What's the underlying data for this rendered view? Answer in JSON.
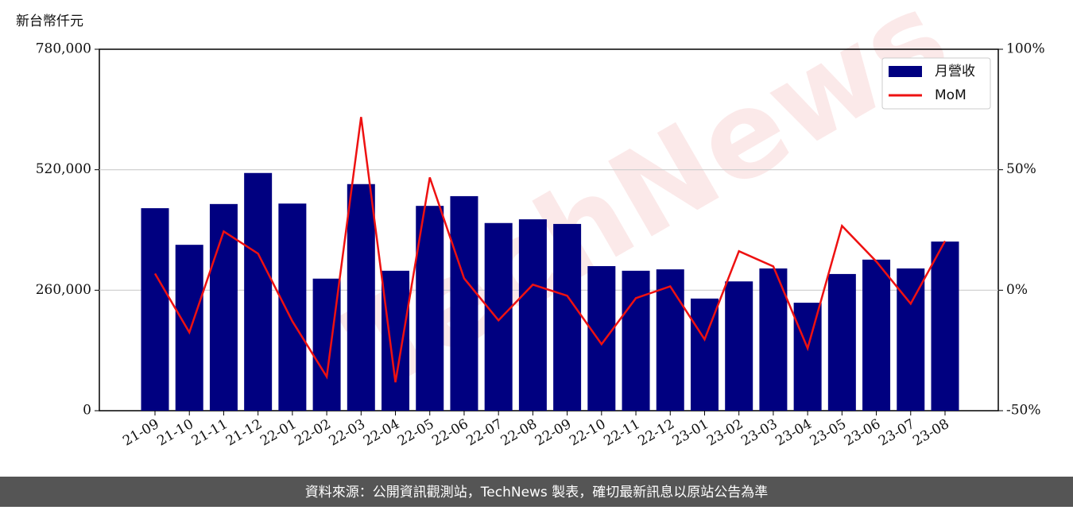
{
  "chart_data": {
    "type": "bar-line",
    "y_label": "新台幣仟元",
    "watermark": "TechNews",
    "footer": "資料來源：公開資訊觀測站，TechNews 製表，確切最新訊息以原站公告為準",
    "categories": [
      "21-09",
      "21-10",
      "21-11",
      "21-12",
      "22-01",
      "22-02",
      "22-03",
      "22-04",
      "22-05",
      "22-06",
      "22-07",
      "22-08",
      "22-09",
      "22-10",
      "22-11",
      "22-12",
      "23-01",
      "23-02",
      "23-03",
      "23-04",
      "23-05",
      "23-06",
      "23-07",
      "23-08"
    ],
    "series": [
      {
        "name": "月營收",
        "type": "bar",
        "color": "#000080",
        "values": [
          437000,
          358000,
          446000,
          513000,
          447000,
          285000,
          489000,
          302000,
          442000,
          463000,
          405000,
          413000,
          403000,
          312000,
          302000,
          305000,
          242000,
          279000,
          307000,
          233000,
          295000,
          326000,
          307000,
          365000
        ]
      },
      {
        "name": "MoM",
        "type": "line",
        "axis": "y2",
        "color": "#ee1111",
        "values": [
          6.9,
          -17.5,
          24.4,
          15.2,
          -12.9,
          -35.9,
          71.9,
          -38.2,
          46.8,
          4.9,
          -12.5,
          2.3,
          -2.3,
          -22.4,
          -3.3,
          1.6,
          -20.4,
          16.2,
          9.9,
          -24.1,
          26.7,
          11.9,
          -5.6,
          20.4
        ]
      }
    ],
    "ylim": [
      0,
      780000
    ],
    "yticks": [
      {
        "value": 0,
        "label": "0"
      },
      {
        "value": 260000,
        "label": "260,000"
      },
      {
        "value": 520000,
        "label": "520,000"
      },
      {
        "value": 780000,
        "label": "780,000"
      }
    ],
    "y2lim": [
      -50,
      100
    ],
    "y2ticks": [
      {
        "value": -50,
        "label": "-50%"
      },
      {
        "value": 0,
        "label": "0%"
      },
      {
        "value": 50,
        "label": "50%"
      },
      {
        "value": 100,
        "label": "100%"
      }
    ],
    "grid": true,
    "legend": "upper right"
  }
}
